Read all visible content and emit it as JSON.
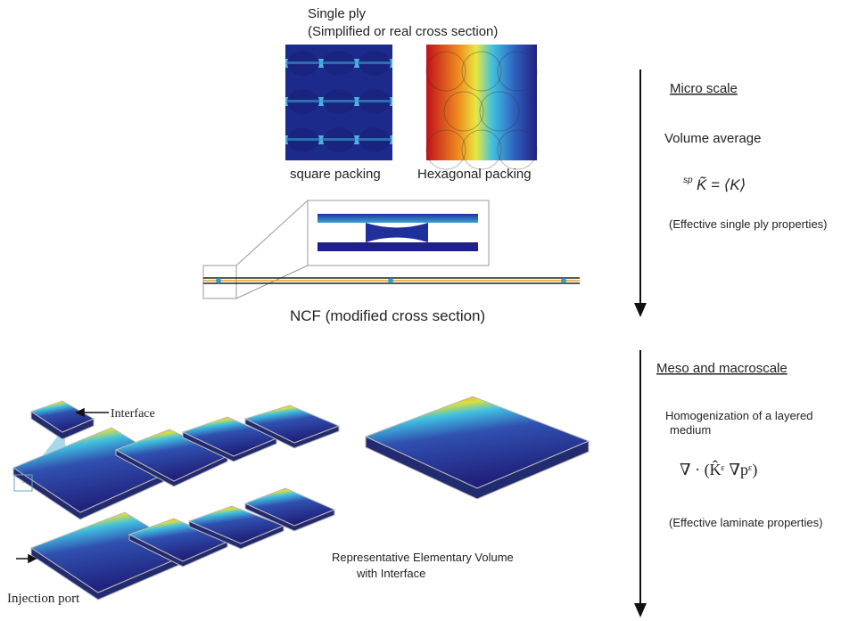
{
  "top": {
    "title": "Single ply",
    "subtitle": "(Simplified or real cross section)",
    "square_label": "square packing",
    "hex_label": "Hexagonal packing",
    "ncf_label": "NCF (modified cross section)"
  },
  "bottom": {
    "interface_label": "Interface",
    "injection_label": "Injection port",
    "rev_label": [
      "Representative Elementary Volume",
      "with Interface"
    ]
  },
  "micro": {
    "heading": "Micro scale",
    "method": "Volume average",
    "formula_sup": "sp",
    "formula": "K̃ = ⟨K⟩",
    "note": "(Effective single ply properties)"
  },
  "meso": {
    "heading": "Meso and macroscale",
    "method": [
      "Homogenization of a layered",
      "medium"
    ],
    "formula": "∇ · (K̂ᵋ ∇pᵋ)",
    "note": "(Effective laminate properties)"
  }
}
